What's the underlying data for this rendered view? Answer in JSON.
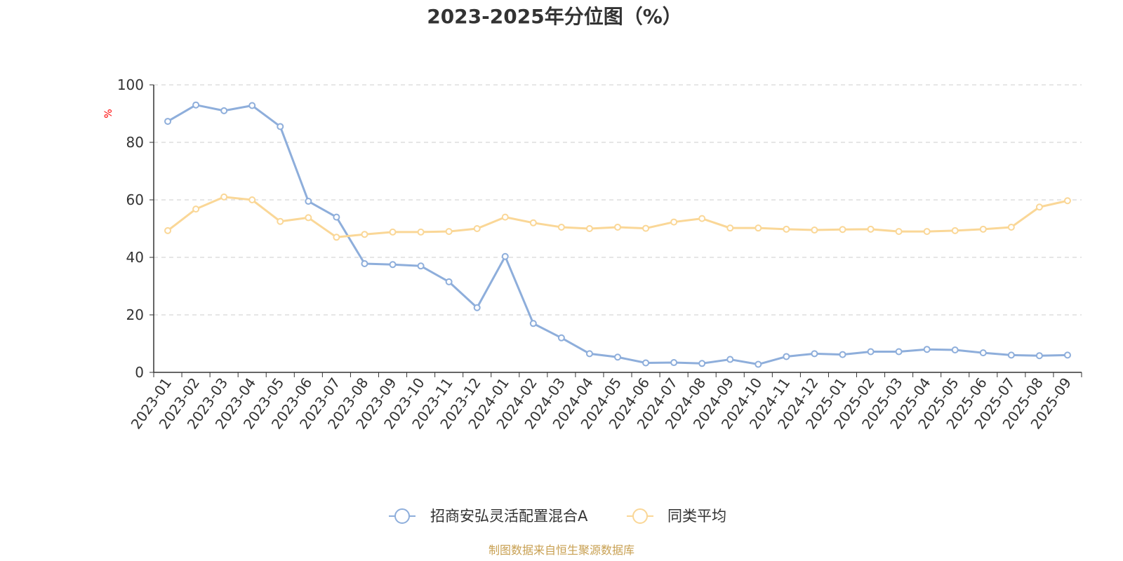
{
  "chart_data": {
    "type": "line",
    "title": "2023-2025年分位图（%）",
    "ylabel": "%",
    "xlabel": "",
    "ylim": [
      0,
      100
    ],
    "yticks": [
      0,
      20,
      40,
      60,
      80,
      100
    ],
    "grid": true,
    "legend_position": "bottom-center",
    "categories": [
      "2023-01",
      "2023-02",
      "2023-03",
      "2023-04",
      "2023-05",
      "2023-06",
      "2023-07",
      "2023-08",
      "2023-09",
      "2023-10",
      "2023-11",
      "2023-12",
      "2024-01",
      "2024-02",
      "2024-03",
      "2024-04",
      "2024-05",
      "2024-06",
      "2024-07",
      "2024-08",
      "2024-09",
      "2024-10",
      "2024-11",
      "2024-12",
      "2025-01",
      "2025-02",
      "2025-03",
      "2025-04",
      "2025-05",
      "2025-06",
      "2025-07",
      "2025-08",
      "2025-09"
    ],
    "series": [
      {
        "name": "招商安弘灵活配置混合A",
        "color": "#8eaedb",
        "values": [
          87.3,
          93.0,
          91.0,
          92.8,
          85.5,
          59.5,
          54.0,
          37.8,
          37.5,
          37.0,
          31.5,
          22.5,
          40.3,
          17.0,
          12.0,
          6.5,
          5.3,
          3.3,
          3.4,
          3.1,
          4.5,
          2.8,
          5.5,
          6.5,
          6.2,
          7.2,
          7.2,
          8.0,
          7.8,
          6.8,
          6.0,
          5.8,
          6.0
        ]
      },
      {
        "name": "同类平均",
        "color": "#fad797",
        "values": [
          49.3,
          56.8,
          61.0,
          60.0,
          52.5,
          53.8,
          47.0,
          48.0,
          48.8,
          48.8,
          49.0,
          50.0,
          54.0,
          52.0,
          50.5,
          50.0,
          50.5,
          50.1,
          52.3,
          53.5,
          50.2,
          50.2,
          49.8,
          49.5,
          49.7,
          49.8,
          49.0,
          49.0,
          49.3,
          49.8,
          50.5,
          57.5,
          59.7
        ]
      }
    ],
    "source": "制图数据来自恒生聚源数据库"
  },
  "colors": {
    "axis": "#333333",
    "grid": "#cccccc",
    "unit_label": "#ff0000",
    "source_text": "#c8a052"
  }
}
